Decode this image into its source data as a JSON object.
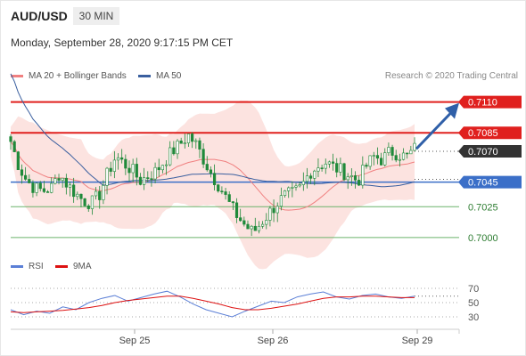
{
  "header": {
    "symbol": "AUD/USD",
    "timeframe": "30 MIN",
    "timestamp": "Monday, September 28, 2020 9:17:15 PM CET"
  },
  "legend": {
    "ma20": "MA 20 + Bollinger Bands",
    "ma50": "MA 50",
    "copyright": "Research © 2020 Trading Central"
  },
  "rsi_legend": {
    "rsi": "RSI",
    "ma": "9MA"
  },
  "colors": {
    "ma20": "#f08080",
    "ma50": "#3a5f9f",
    "band_fill": "#fbd9d6",
    "candle": "#1f8a3a",
    "resistance": "#e0201e",
    "support": "#3b6fc8",
    "minor_level": "#6bb36b",
    "last_price": "#333333",
    "arrow": "#2f5fa8",
    "rsi": "#5b7fd6",
    "rsi_ma": "#dd1111"
  },
  "chart_data": [
    {
      "type": "candlestick",
      "x_labels": [
        "Sep 25",
        "Sep 26",
        "Sep 29"
      ],
      "y_range": [
        0.6992,
        0.7122
      ],
      "levels": [
        {
          "value": 0.711,
          "label": "0.7110",
          "kind": "resistance"
        },
        {
          "value": 0.7085,
          "label": "0.7085",
          "kind": "resistance"
        },
        {
          "value": 0.707,
          "label": "0.7070",
          "kind": "last"
        },
        {
          "value": 0.7045,
          "label": "0.7045",
          "kind": "support"
        },
        {
          "value": 0.7025,
          "label": "0.7025",
          "kind": "minor"
        },
        {
          "value": 0.7,
          "label": "0.7000",
          "kind": "minor"
        }
      ],
      "price_path": [
        0.7078,
        0.7058,
        0.7046,
        0.704,
        0.7038,
        0.704,
        0.7052,
        0.7043,
        0.7036,
        0.703,
        0.7028,
        0.7035,
        0.7052,
        0.7066,
        0.706,
        0.7055,
        0.7046,
        0.705,
        0.7054,
        0.7062,
        0.707,
        0.7076,
        0.7083,
        0.7075,
        0.7062,
        0.705,
        0.704,
        0.7028,
        0.7018,
        0.701,
        0.7004,
        0.7012,
        0.702,
        0.7028,
        0.7034,
        0.7036,
        0.7041,
        0.7053,
        0.7058,
        0.7061,
        0.7057,
        0.7054,
        0.705,
        0.7046,
        0.7058,
        0.7066,
        0.7063,
        0.707,
        0.7068,
        0.7065,
        0.7072
      ],
      "forecast_target": 0.711
    },
    {
      "type": "line",
      "name": "RSI",
      "y_ticks": [
        70,
        50,
        30
      ],
      "series": [
        {
          "name": "RSI",
          "values": [
            40,
            33,
            38,
            35,
            44,
            40,
            50,
            56,
            60,
            52,
            57,
            62,
            66,
            58,
            48,
            40,
            35,
            30,
            38,
            45,
            52,
            50,
            58,
            62,
            65,
            58,
            55,
            60,
            62,
            58,
            56,
            59
          ]
        },
        {
          "name": "9MA",
          "values": [
            37,
            36,
            37,
            38,
            39,
            41,
            43,
            46,
            50,
            53,
            55,
            57,
            59,
            59,
            56,
            52,
            48,
            43,
            40,
            40,
            42,
            45,
            48,
            52,
            56,
            58,
            58,
            59,
            59,
            58,
            57,
            57
          ]
        }
      ]
    }
  ]
}
